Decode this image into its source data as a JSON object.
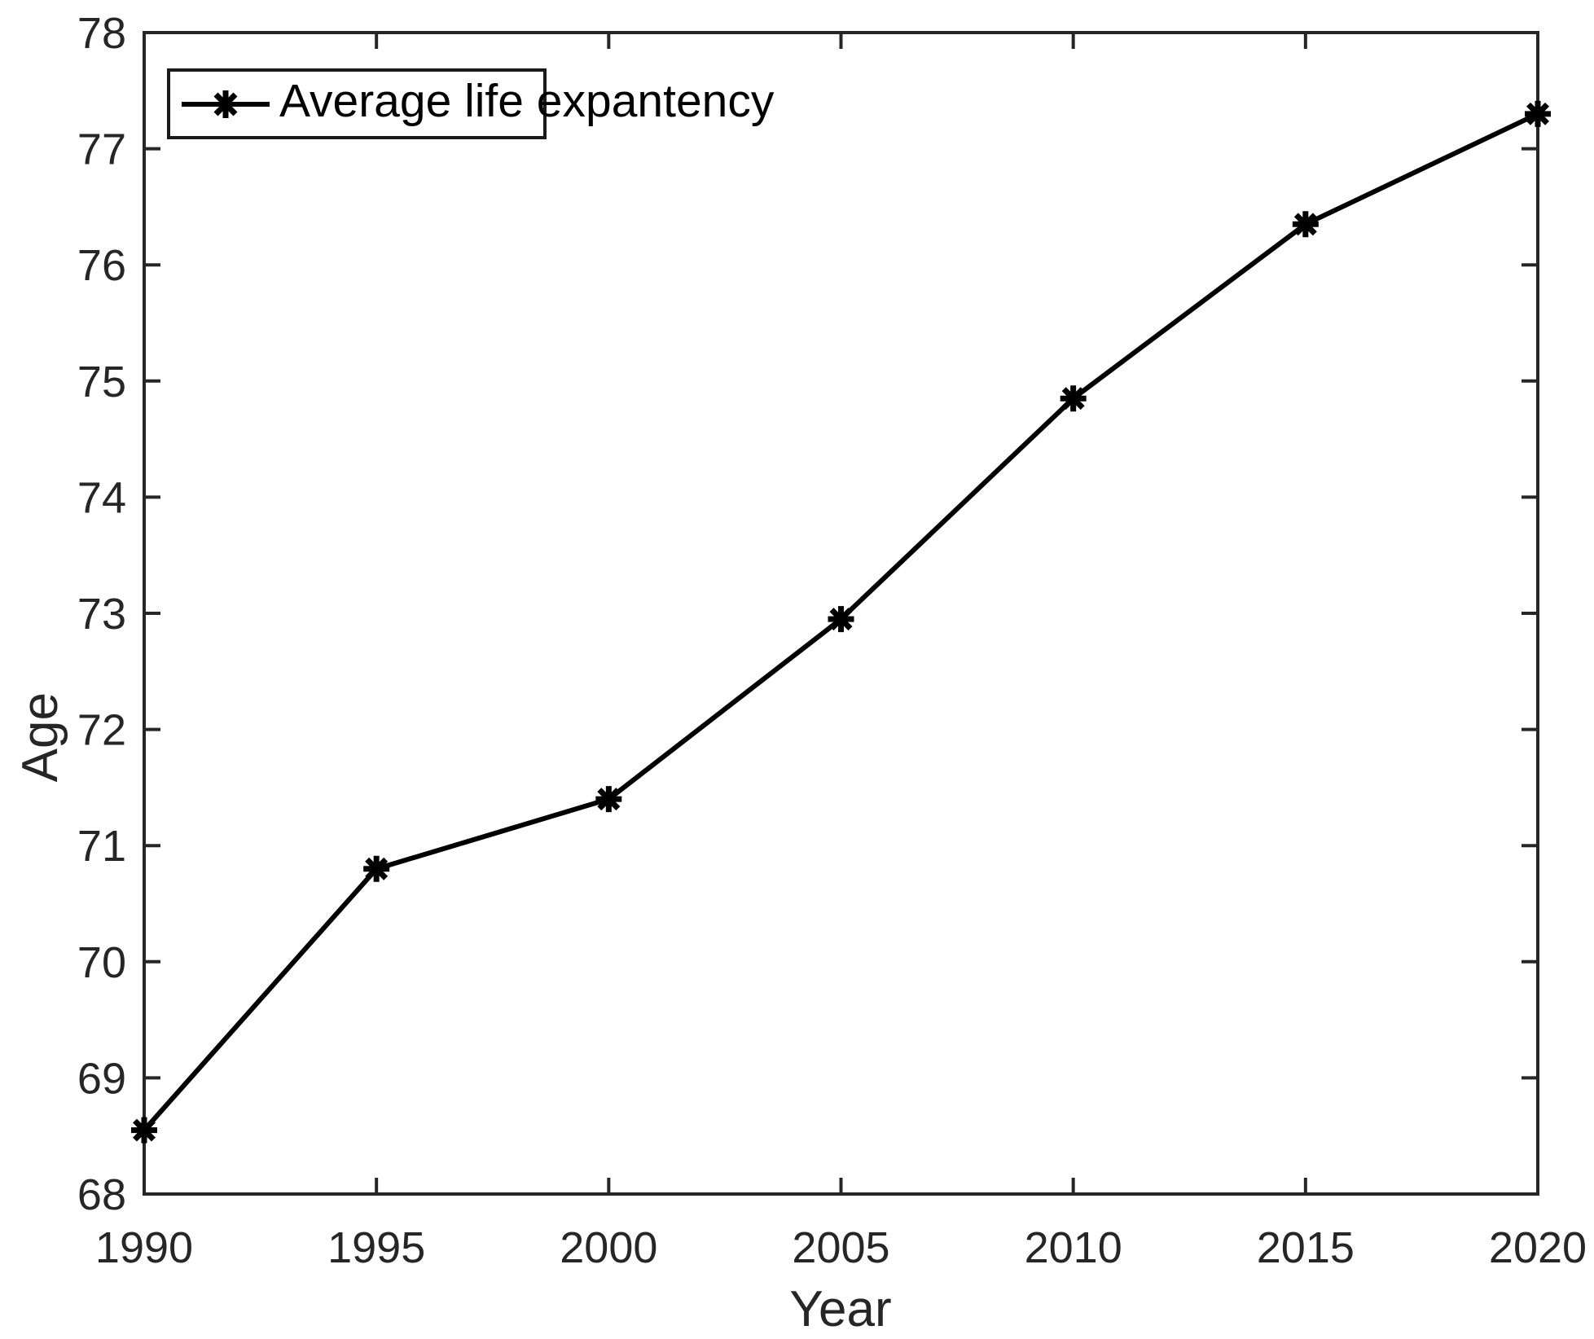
{
  "figure": {
    "background_color": "#ffffff",
    "axis_color": "#262626",
    "data_color": "#000000"
  },
  "chart_data": {
    "type": "line",
    "title": "",
    "xlabel": "Year",
    "ylabel": "Age",
    "x": [
      1990,
      1995,
      2000,
      2005,
      2010,
      2015,
      2020
    ],
    "series": [
      {
        "name": "Average life expantency",
        "values": [
          68.55,
          70.8,
          71.4,
          72.95,
          74.85,
          76.35,
          77.3
        ],
        "color": "#000000",
        "marker": "asterisk",
        "line_width": 6
      }
    ],
    "xlim": [
      1990,
      2020
    ],
    "ylim": [
      68,
      78
    ],
    "xticks": [
      1990,
      1995,
      2000,
      2005,
      2010,
      2015,
      2020
    ],
    "yticks": [
      68,
      69,
      70,
      71,
      72,
      73,
      74,
      75,
      76,
      77,
      78
    ],
    "grid": false,
    "box": true,
    "tick_direction": "in",
    "legend_position": "top-left"
  }
}
